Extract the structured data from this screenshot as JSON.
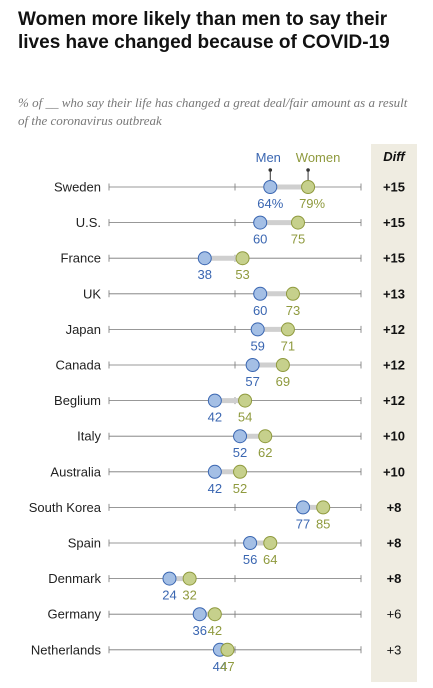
{
  "title": "Women more likely than men to say their lives have changed because of COVID-19",
  "subtitle": "% of __ who say their life has changed a great deal/fair amount as a result of the coronavirus outbreak",
  "colors": {
    "men": "#a4bfe5",
    "men_stroke": "#3a66b1",
    "men_text": "#3a66b1",
    "women": "#c6d08c",
    "women_stroke": "#8f9a3e",
    "women_text": "#8f9a3e",
    "diff_bg": "#efece1",
    "axis": "#777777",
    "connector": "#cfcfcf"
  },
  "chart_data": {
    "type": "dot",
    "series": [
      {
        "name": "Men",
        "values": [
          64,
          60,
          38,
          60,
          59,
          57,
          42,
          52,
          42,
          77,
          56,
          24,
          36,
          44
        ]
      },
      {
        "name": "Women",
        "values": [
          79,
          75,
          53,
          73,
          71,
          69,
          54,
          62,
          52,
          85,
          64,
          32,
          42,
          47
        ]
      }
    ],
    "categories": [
      "Sweden",
      "U.S.",
      "France",
      "UK",
      "Japan",
      "Canada",
      "Beglium",
      "Italy",
      "Australia",
      "South Korea",
      "Spain",
      "Denmark",
      "Germany",
      "Netherlands"
    ],
    "diff_header": "Diff",
    "diff": [
      "+15",
      "+15",
      "+15",
      "+13",
      "+12",
      "+12",
      "+12",
      "+10",
      "+10",
      "+8",
      "+8",
      "+8",
      "+6",
      "+3"
    ],
    "diff_bold": [
      true,
      true,
      true,
      true,
      true,
      true,
      true,
      true,
      true,
      true,
      true,
      true,
      false,
      false
    ],
    "first_row_label_suffix": "%",
    "xlim": [
      0,
      100
    ]
  }
}
